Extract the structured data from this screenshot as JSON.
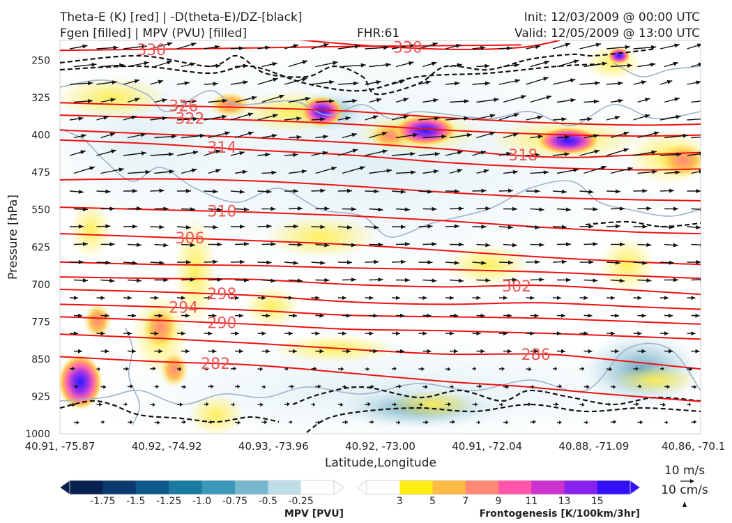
{
  "header": {
    "title_left_1": "Theta-E (K) [red] | -D(theta-E)/DZ-[black]",
    "title_left_2": "Fgen [filled] | MPV (PVU) [filled]",
    "fhr": "FHR:61",
    "init": "Init: 12/03/2009 @ 00:00 UTC",
    "valid": "Valid: 12/05/2009 @ 13:00 UTC"
  },
  "chart_data": {
    "type": "cross-section",
    "xlabel": "Latitude,Longitude",
    "ylabel": "Pressure [hPa]",
    "x_ticks": [
      "40.91, -75.87",
      "40.92, -74.92",
      "40.93, -73.96",
      "40.92, -73.00",
      "40.91, -72.04",
      "40.88, -71.09",
      "40.86, -70.1"
    ],
    "y_ticks": [
      250,
      325,
      400,
      475,
      550,
      625,
      700,
      775,
      850,
      925,
      1000
    ],
    "ylim": [
      1000,
      210
    ],
    "theta_e_contours": [
      {
        "label": "330",
        "points": [
          [
            0.0,
            230
          ],
          [
            0.13,
            228
          ],
          [
            0.3,
            225
          ],
          [
            0.45,
            222
          ],
          [
            0.55,
            221
          ],
          [
            0.65,
            220
          ],
          [
            0.72,
            219
          ]
        ]
      },
      {
        "label": "330",
        "points": [
          [
            0.31,
            200
          ],
          [
            0.4,
            212
          ],
          [
            0.5,
            222
          ],
          [
            0.62,
            228
          ],
          [
            0.72,
            224
          ],
          [
            0.78,
            210
          ]
        ]
      },
      {
        "label": "326",
        "points": [
          [
            0.0,
            335
          ],
          [
            0.13,
            340
          ],
          [
            0.3,
            345
          ],
          [
            0.45,
            352
          ],
          [
            0.6,
            365
          ],
          [
            0.75,
            375
          ],
          [
            0.9,
            380
          ],
          [
            1.0,
            378
          ]
        ]
      },
      {
        "label": "322",
        "points": [
          [
            0.0,
            360
          ],
          [
            0.15,
            365
          ],
          [
            0.3,
            370
          ],
          [
            0.45,
            378
          ],
          [
            0.6,
            390
          ],
          [
            0.75,
            398
          ],
          [
            0.9,
            402
          ],
          [
            1.0,
            400
          ]
        ]
      },
      {
        "label": "318",
        "points": [
          [
            0.0,
            390
          ],
          [
            0.15,
            398
          ],
          [
            0.3,
            405
          ],
          [
            0.45,
            415
          ],
          [
            0.6,
            428
          ],
          [
            0.7,
            440
          ],
          [
            0.8,
            445
          ],
          [
            0.9,
            440
          ],
          [
            1.0,
            435
          ]
        ]
      },
      {
        "label": "314",
        "points": [
          [
            0.0,
            410
          ],
          [
            0.15,
            418
          ],
          [
            0.3,
            430
          ],
          [
            0.45,
            440
          ],
          [
            0.6,
            455
          ],
          [
            0.75,
            465
          ],
          [
            0.9,
            470
          ],
          [
            1.0,
            468
          ]
        ]
      },
      {
        "label": "",
        "points": [
          [
            0.0,
            490
          ],
          [
            0.15,
            488
          ],
          [
            0.3,
            492
          ],
          [
            0.45,
            502
          ],
          [
            0.6,
            515
          ],
          [
            0.75,
            525
          ],
          [
            0.9,
            530
          ],
          [
            1.0,
            532
          ]
        ]
      },
      {
        "label": "310",
        "points": [
          [
            0.0,
            545
          ],
          [
            0.15,
            550
          ],
          [
            0.3,
            555
          ],
          [
            0.45,
            562
          ],
          [
            0.6,
            572
          ],
          [
            0.75,
            585
          ],
          [
            0.9,
            595
          ],
          [
            1.0,
            598
          ]
        ]
      },
      {
        "label": "306",
        "points": [
          [
            0.0,
            598
          ],
          [
            0.15,
            605
          ],
          [
            0.3,
            612
          ],
          [
            0.45,
            620
          ],
          [
            0.6,
            632
          ],
          [
            0.75,
            645
          ],
          [
            0.9,
            655
          ],
          [
            1.0,
            660
          ]
        ]
      },
      {
        "label": "",
        "points": [
          [
            0.0,
            655
          ],
          [
            0.15,
            660
          ],
          [
            0.3,
            662
          ],
          [
            0.45,
            667
          ],
          [
            0.6,
            670
          ],
          [
            0.75,
            675
          ],
          [
            0.9,
            683
          ],
          [
            1.0,
            688
          ]
        ]
      },
      {
        "label": "302",
        "points": [
          [
            0.0,
            685
          ],
          [
            0.15,
            688
          ],
          [
            0.3,
            690
          ],
          [
            0.45,
            700
          ],
          [
            0.6,
            705
          ],
          [
            0.75,
            702
          ],
          [
            0.9,
            712
          ],
          [
            1.0,
            720
          ]
        ]
      },
      {
        "label": "298",
        "points": [
          [
            0.0,
            710
          ],
          [
            0.15,
            715
          ],
          [
            0.3,
            722
          ],
          [
            0.45,
            735
          ],
          [
            0.6,
            740
          ],
          [
            0.75,
            737
          ],
          [
            0.9,
            745
          ],
          [
            1.0,
            750
          ]
        ]
      },
      {
        "label": "294",
        "points": [
          [
            0.0,
            740
          ],
          [
            0.15,
            745
          ],
          [
            0.3,
            752
          ],
          [
            0.45,
            762
          ],
          [
            0.6,
            765
          ],
          [
            0.75,
            768
          ],
          [
            0.9,
            775
          ],
          [
            1.0,
            780
          ]
        ]
      },
      {
        "label": "290",
        "points": [
          [
            0.0,
            765
          ],
          [
            0.15,
            772
          ],
          [
            0.3,
            780
          ],
          [
            0.45,
            790
          ],
          [
            0.6,
            793
          ],
          [
            0.75,
            798
          ],
          [
            0.9,
            805
          ],
          [
            1.0,
            810
          ]
        ]
      },
      {
        "label": "286",
        "points": [
          [
            0.0,
            800
          ],
          [
            0.15,
            808
          ],
          [
            0.3,
            818
          ],
          [
            0.45,
            830
          ],
          [
            0.6,
            840
          ],
          [
            0.75,
            840
          ],
          [
            0.85,
            850
          ],
          [
            1.0,
            870
          ]
        ]
      },
      {
        "label": "282",
        "points": [
          [
            0.0,
            845
          ],
          [
            0.15,
            855
          ],
          [
            0.3,
            862
          ],
          [
            0.45,
            878
          ],
          [
            0.6,
            895
          ],
          [
            0.72,
            905
          ],
          [
            0.85,
            920
          ],
          [
            1.0,
            935
          ]
        ]
      }
    ],
    "wind_arrows": true,
    "colorbars": [
      {
        "label": "MPV [PVU]",
        "ticks": [
          "-1.75",
          "-1.5",
          "-1.25",
          "-1.0",
          "-0.75",
          "-0.5",
          "-0.25"
        ],
        "colors": [
          "#08204f",
          "#0b3a6f",
          "#0f5a8a",
          "#1a7aa0",
          "#3a98b8",
          "#77b8cd",
          "#bfdde6",
          "#ffffff"
        ]
      },
      {
        "label": "Frontogenesis [K/100km/3hr]",
        "ticks": [
          "3",
          "5",
          "7",
          "9",
          "11",
          "13",
          "15"
        ],
        "colors": [
          "#ffffff",
          "#ffee11",
          "#ffbb44",
          "#ff8877",
          "#ff55aa",
          "#cc33cc",
          "#8822ee",
          "#3311ff"
        ]
      }
    ],
    "reference_vectors": [
      "10 m/s",
      "10 cm/s"
    ]
  }
}
